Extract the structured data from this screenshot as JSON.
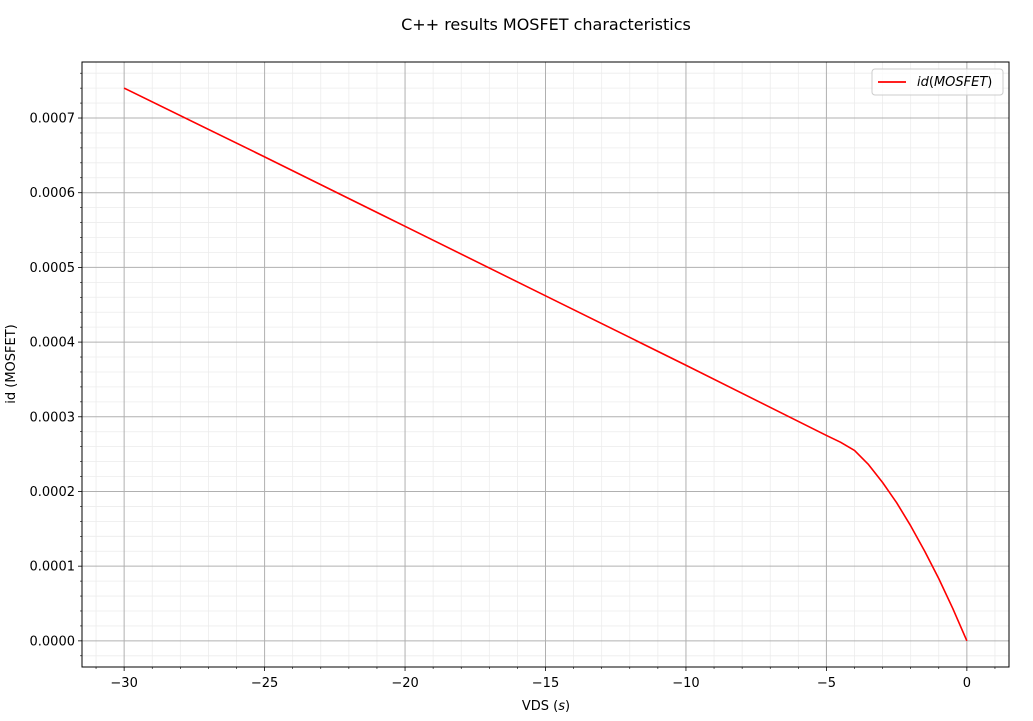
{
  "chart_data": {
    "type": "line",
    "title": "C++ results MOSFET characteristics",
    "xlabel": "VDS",
    "xlabel_unit": "s",
    "ylabel": "id (MOSFET)",
    "xlim": [
      -31.5,
      1.5
    ],
    "ylim": [
      -3.5e-05,
      0.000775
    ],
    "x_ticks": [
      -30,
      -25,
      -20,
      -15,
      -10,
      -5,
      0
    ],
    "x_tick_labels": [
      "−30",
      "−25",
      "−20",
      "−15",
      "−10",
      "−5",
      "0"
    ],
    "y_ticks": [
      0.0,
      0.0001,
      0.0002,
      0.0003,
      0.0004,
      0.0005,
      0.0006,
      0.0007
    ],
    "y_tick_labels": [
      "0.0000",
      "0.0001",
      "0.0002",
      "0.0003",
      "0.0004",
      "0.0005",
      "0.0006",
      "0.0007"
    ],
    "grid": true,
    "minor_grid": true,
    "legend_position": "top-right",
    "series": [
      {
        "name": "id(MOSFET)",
        "legend_prefix": "id",
        "legend_arg": "MOSFET",
        "color": "#ff0000",
        "x": [
          -30,
          -25,
          -20,
          -15,
          -10,
          -5,
          -4.5,
          -4,
          -3.5,
          -3,
          -2.5,
          -2,
          -1.5,
          -1,
          -0.5,
          0
        ],
        "y": [
          0.00074,
          0.000648,
          0.000555,
          0.000462,
          0.000369,
          0.000275,
          0.000266,
          0.000255,
          0.000236,
          0.000212,
          0.000185,
          0.000154,
          0.00012,
          8.33e-05,
          4.32e-05,
          0.0
        ]
      }
    ]
  }
}
